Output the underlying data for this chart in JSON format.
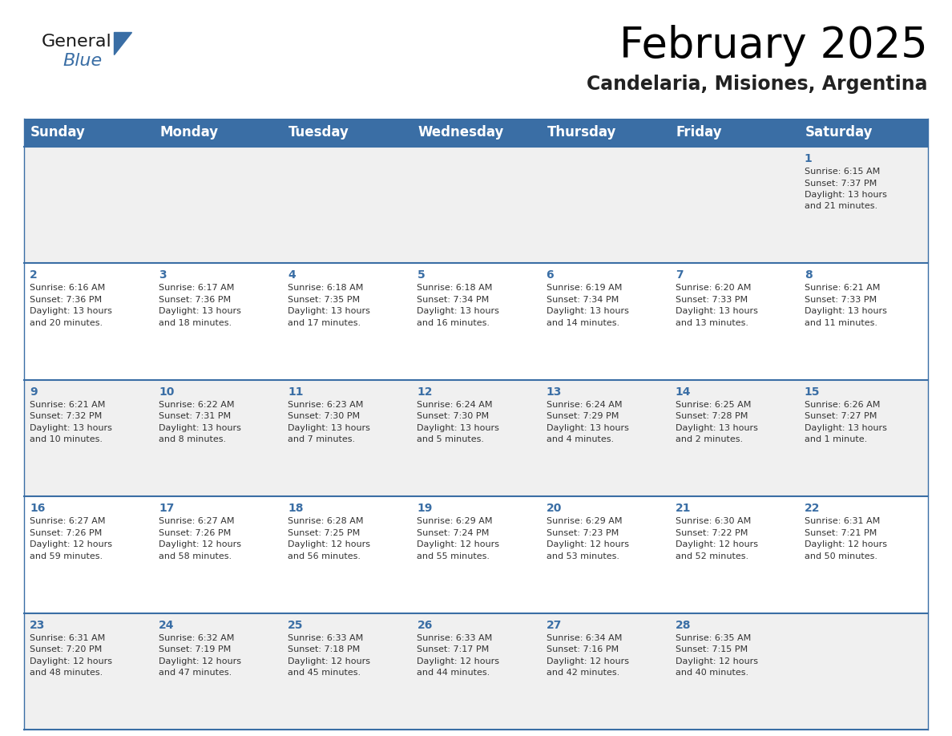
{
  "title": "February 2025",
  "subtitle": "Candelaria, Misiones, Argentina",
  "header_bg": "#3a6ea5",
  "header_text": "#ffffff",
  "cell_bg_light": "#f0f0f0",
  "cell_bg_white": "#ffffff",
  "border_color": "#3a6ea5",
  "text_color": "#333333",
  "day_num_color": "#3a6ea5",
  "day_headers": [
    "Sunday",
    "Monday",
    "Tuesday",
    "Wednesday",
    "Thursday",
    "Friday",
    "Saturday"
  ],
  "calendar": [
    [
      null,
      null,
      null,
      null,
      null,
      null,
      {
        "day": 1,
        "sunrise": "6:15 AM",
        "sunset": "7:37 PM",
        "daylight": "13 hours and 21 minutes."
      }
    ],
    [
      {
        "day": 2,
        "sunrise": "6:16 AM",
        "sunset": "7:36 PM",
        "daylight": "13 hours and 20 minutes."
      },
      {
        "day": 3,
        "sunrise": "6:17 AM",
        "sunset": "7:36 PM",
        "daylight": "13 hours and 18 minutes."
      },
      {
        "day": 4,
        "sunrise": "6:18 AM",
        "sunset": "7:35 PM",
        "daylight": "13 hours and 17 minutes."
      },
      {
        "day": 5,
        "sunrise": "6:18 AM",
        "sunset": "7:34 PM",
        "daylight": "13 hours and 16 minutes."
      },
      {
        "day": 6,
        "sunrise": "6:19 AM",
        "sunset": "7:34 PM",
        "daylight": "13 hours and 14 minutes."
      },
      {
        "day": 7,
        "sunrise": "6:20 AM",
        "sunset": "7:33 PM",
        "daylight": "13 hours and 13 minutes."
      },
      {
        "day": 8,
        "sunrise": "6:21 AM",
        "sunset": "7:33 PM",
        "daylight": "13 hours and 11 minutes."
      }
    ],
    [
      {
        "day": 9,
        "sunrise": "6:21 AM",
        "sunset": "7:32 PM",
        "daylight": "13 hours and 10 minutes."
      },
      {
        "day": 10,
        "sunrise": "6:22 AM",
        "sunset": "7:31 PM",
        "daylight": "13 hours and 8 minutes."
      },
      {
        "day": 11,
        "sunrise": "6:23 AM",
        "sunset": "7:30 PM",
        "daylight": "13 hours and 7 minutes."
      },
      {
        "day": 12,
        "sunrise": "6:24 AM",
        "sunset": "7:30 PM",
        "daylight": "13 hours and 5 minutes."
      },
      {
        "day": 13,
        "sunrise": "6:24 AM",
        "sunset": "7:29 PM",
        "daylight": "13 hours and 4 minutes."
      },
      {
        "day": 14,
        "sunrise": "6:25 AM",
        "sunset": "7:28 PM",
        "daylight": "13 hours and 2 minutes."
      },
      {
        "day": 15,
        "sunrise": "6:26 AM",
        "sunset": "7:27 PM",
        "daylight": "13 hours and 1 minute."
      }
    ],
    [
      {
        "day": 16,
        "sunrise": "6:27 AM",
        "sunset": "7:26 PM",
        "daylight": "12 hours and 59 minutes."
      },
      {
        "day": 17,
        "sunrise": "6:27 AM",
        "sunset": "7:26 PM",
        "daylight": "12 hours and 58 minutes."
      },
      {
        "day": 18,
        "sunrise": "6:28 AM",
        "sunset": "7:25 PM",
        "daylight": "12 hours and 56 minutes."
      },
      {
        "day": 19,
        "sunrise": "6:29 AM",
        "sunset": "7:24 PM",
        "daylight": "12 hours and 55 minutes."
      },
      {
        "day": 20,
        "sunrise": "6:29 AM",
        "sunset": "7:23 PM",
        "daylight": "12 hours and 53 minutes."
      },
      {
        "day": 21,
        "sunrise": "6:30 AM",
        "sunset": "7:22 PM",
        "daylight": "12 hours and 52 minutes."
      },
      {
        "day": 22,
        "sunrise": "6:31 AM",
        "sunset": "7:21 PM",
        "daylight": "12 hours and 50 minutes."
      }
    ],
    [
      {
        "day": 23,
        "sunrise": "6:31 AM",
        "sunset": "7:20 PM",
        "daylight": "12 hours and 48 minutes."
      },
      {
        "day": 24,
        "sunrise": "6:32 AM",
        "sunset": "7:19 PM",
        "daylight": "12 hours and 47 minutes."
      },
      {
        "day": 25,
        "sunrise": "6:33 AM",
        "sunset": "7:18 PM",
        "daylight": "12 hours and 45 minutes."
      },
      {
        "day": 26,
        "sunrise": "6:33 AM",
        "sunset": "7:17 PM",
        "daylight": "12 hours and 44 minutes."
      },
      {
        "day": 27,
        "sunrise": "6:34 AM",
        "sunset": "7:16 PM",
        "daylight": "12 hours and 42 minutes."
      },
      {
        "day": 28,
        "sunrise": "6:35 AM",
        "sunset": "7:15 PM",
        "daylight": "12 hours and 40 minutes."
      },
      null
    ]
  ],
  "logo_general_color": "#1a1a1a",
  "logo_blue_color": "#3a6ea5",
  "logo_triangle_color": "#3a6ea5",
  "title_fontsize": 38,
  "subtitle_fontsize": 17,
  "header_fontsize": 12,
  "day_num_fontsize": 10,
  "cell_fontsize": 8.0
}
